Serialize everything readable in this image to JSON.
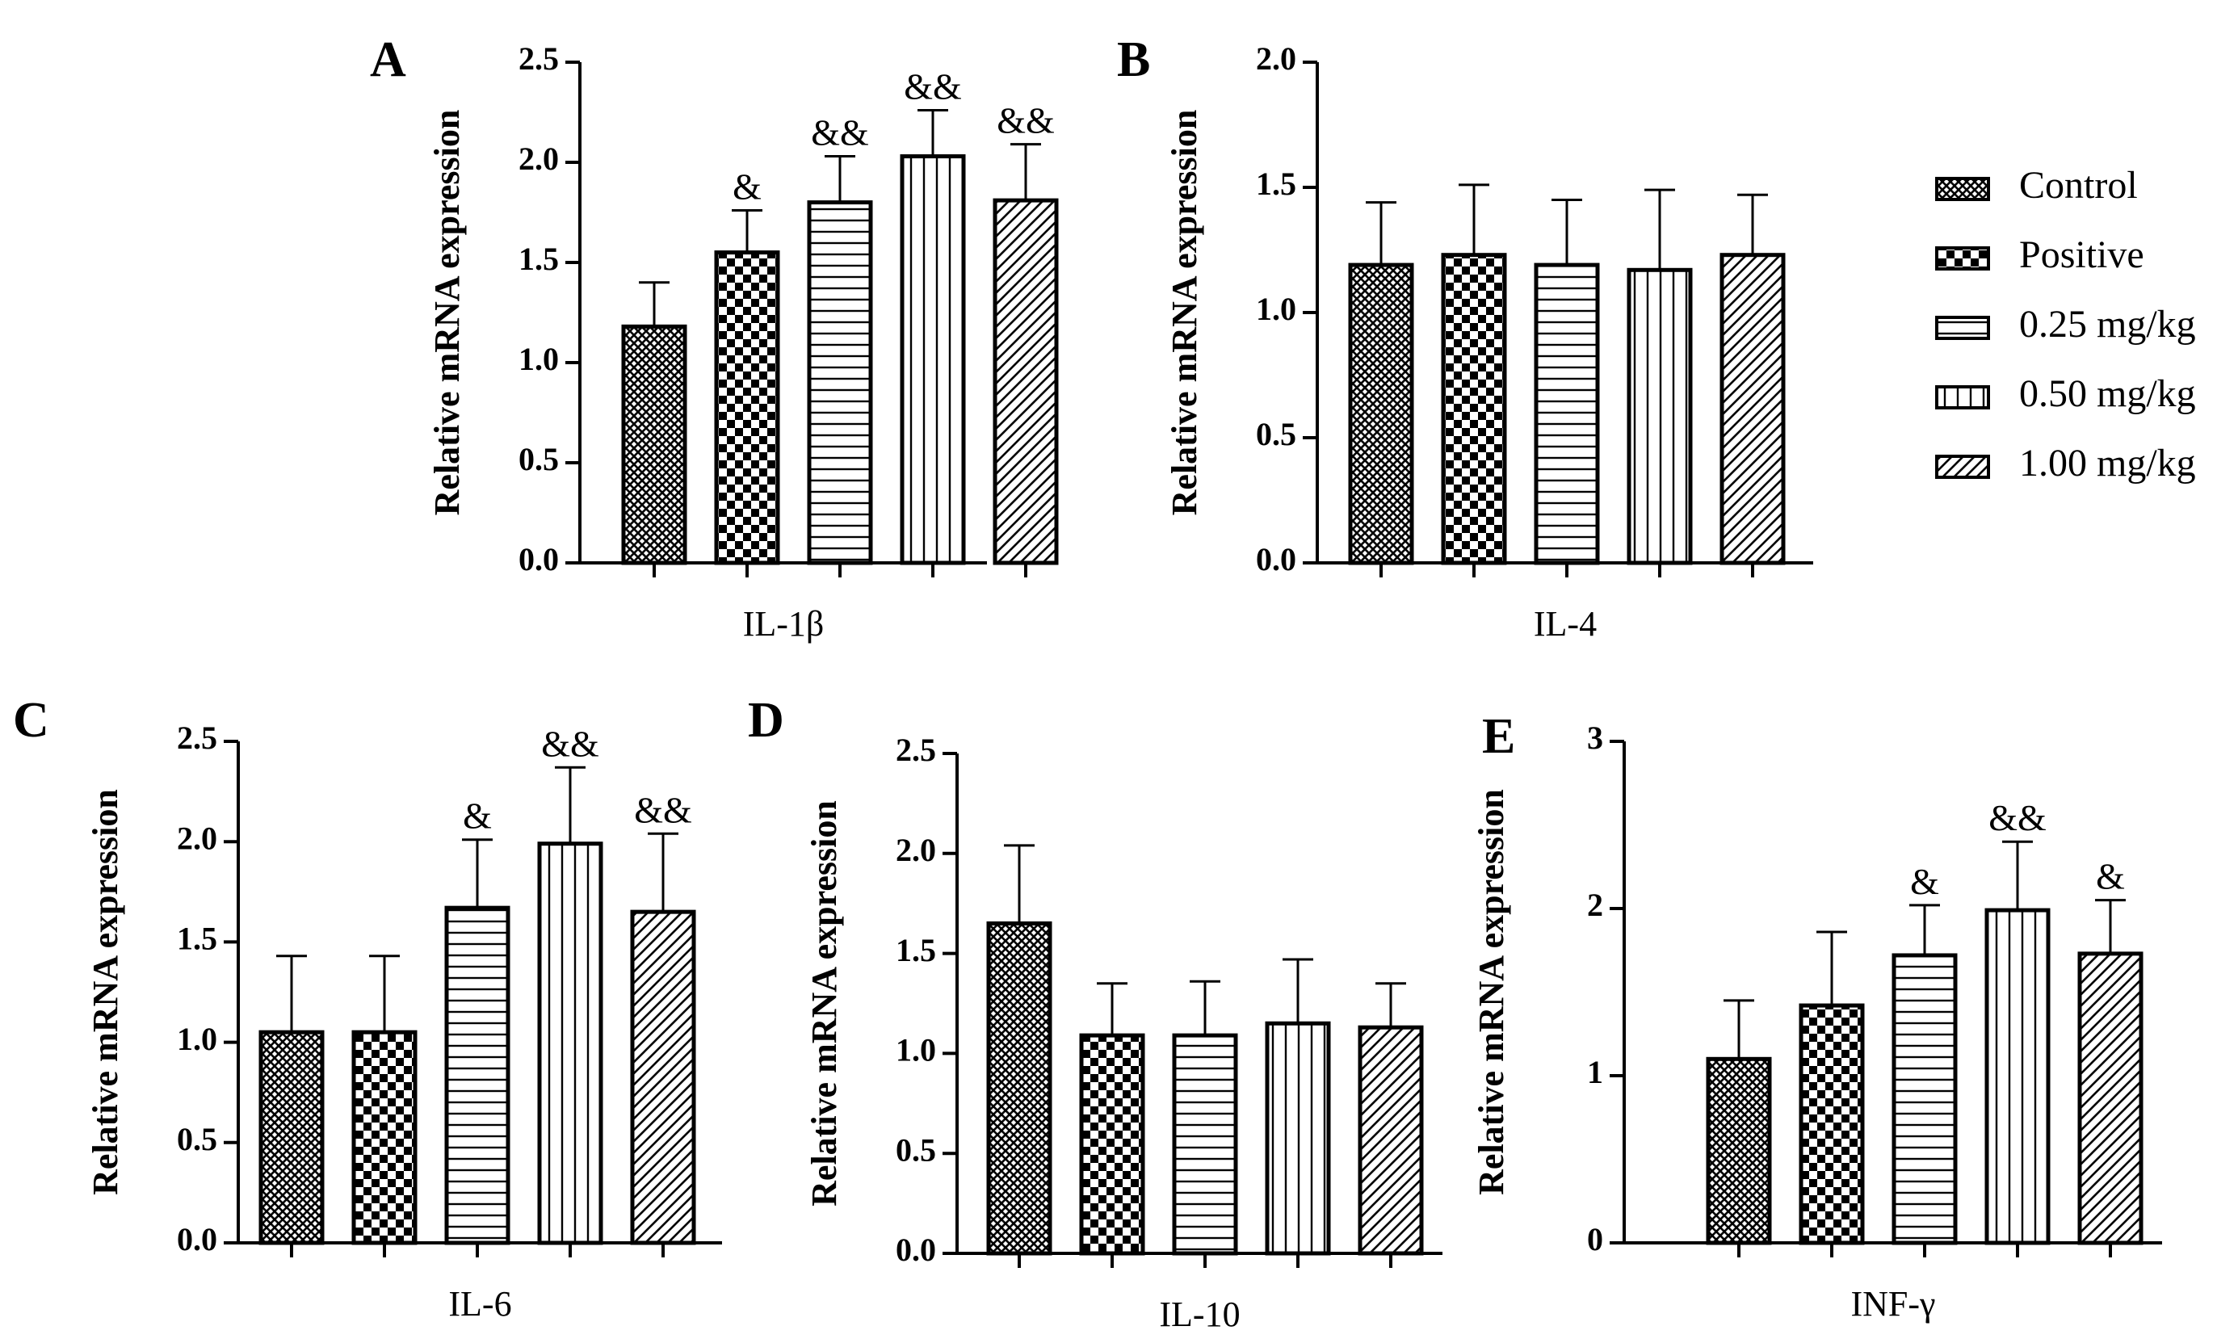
{
  "legend": {
    "entries": [
      "Control",
      "Positive",
      "0.25 mg/kg",
      "0.50 mg/kg",
      "1.00 mg/kg"
    ],
    "patterns": [
      "cross",
      "checker",
      "hlines",
      "vlines",
      "diag"
    ]
  },
  "colors": {
    "ink": "#000000",
    "fill": "#ffffff"
  },
  "chart_data": [
    {
      "type": "bar",
      "panel": "A",
      "xlabel": "IL-1β",
      "ylabel": "Relative mRNA expression",
      "ylim": [
        0,
        2.5
      ],
      "yticks": [
        0.0,
        0.5,
        1.0,
        1.5,
        2.0,
        2.5
      ],
      "ytick_labels": [
        "0.0",
        "0.5",
        "1.0",
        "1.5",
        "2.0",
        "2.5"
      ],
      "categories": [
        "Control",
        "Positive",
        "0.25 mg/kg",
        "0.50 mg/kg",
        "1.00 mg/kg"
      ],
      "values": [
        1.18,
        1.55,
        1.8,
        2.03,
        1.81
      ],
      "errors": [
        0.22,
        0.21,
        0.23,
        0.23,
        0.28
      ],
      "annotations": [
        "",
        "&",
        "&&",
        "&&",
        "&&"
      ]
    },
    {
      "type": "bar",
      "panel": "B",
      "xlabel": "IL-4",
      "ylabel": "Relative mRNA expression",
      "ylim": [
        0,
        2.0
      ],
      "yticks": [
        0.0,
        0.5,
        1.0,
        1.5,
        2.0
      ],
      "ytick_labels": [
        "0.0",
        "0.5",
        "1.0",
        "1.5",
        "2.0"
      ],
      "categories": [
        "Control",
        "Positive",
        "0.25 mg/kg",
        "0.50 mg/kg",
        "1.00 mg/kg"
      ],
      "values": [
        1.19,
        1.23,
        1.19,
        1.17,
        1.23
      ],
      "errors": [
        0.25,
        0.28,
        0.26,
        0.32,
        0.24
      ],
      "annotations": [
        "",
        "",
        "",
        "",
        ""
      ]
    },
    {
      "type": "bar",
      "panel": "C",
      "xlabel": "IL-6",
      "ylabel": "Relative mRNA expression",
      "ylim": [
        0,
        2.5
      ],
      "yticks": [
        0.0,
        0.5,
        1.0,
        1.5,
        2.0,
        2.5
      ],
      "ytick_labels": [
        "0.0",
        "0.5",
        "1.0",
        "1.5",
        "2.0",
        "2.5"
      ],
      "categories": [
        "Control",
        "Positive",
        "0.25 mg/kg",
        "0.50 mg/kg",
        "1.00 mg/kg"
      ],
      "values": [
        1.05,
        1.05,
        1.67,
        1.99,
        1.65
      ],
      "errors": [
        0.38,
        0.38,
        0.34,
        0.38,
        0.39
      ],
      "annotations": [
        "",
        "",
        "&",
        "&&",
        "&&"
      ]
    },
    {
      "type": "bar",
      "panel": "D",
      "xlabel": "IL-10",
      "ylabel": "Relative mRNA expression",
      "ylim": [
        0,
        2.5
      ],
      "yticks": [
        0.0,
        0.5,
        1.0,
        1.5,
        2.0,
        2.5
      ],
      "ytick_labels": [
        "0.0",
        "0.5",
        "1.0",
        "1.5",
        "2.0",
        "2.5"
      ],
      "categories": [
        "Control",
        "Positive",
        "0.25 mg/kg",
        "0.50 mg/kg",
        "1.00 mg/kg"
      ],
      "values": [
        1.65,
        1.09,
        1.09,
        1.15,
        1.13
      ],
      "errors": [
        0.39,
        0.26,
        0.27,
        0.32,
        0.22
      ],
      "annotations": [
        "",
        "",
        "",
        "",
        ""
      ]
    },
    {
      "type": "bar",
      "panel": "E",
      "xlabel": "INF-γ",
      "ylabel": "Relative mRNA expression",
      "ylim": [
        0,
        3
      ],
      "yticks": [
        0,
        1,
        2,
        3
      ],
      "ytick_labels": [
        "0",
        "1",
        "2",
        "3"
      ],
      "categories": [
        "Control",
        "Positive",
        "0.25 mg/kg",
        "0.50 mg/kg",
        "1.00 mg/kg"
      ],
      "values": [
        1.1,
        1.42,
        1.72,
        1.99,
        1.73
      ],
      "errors": [
        0.35,
        0.44,
        0.3,
        0.41,
        0.32
      ],
      "annotations": [
        "",
        "",
        "&",
        "&&",
        "&"
      ]
    }
  ]
}
